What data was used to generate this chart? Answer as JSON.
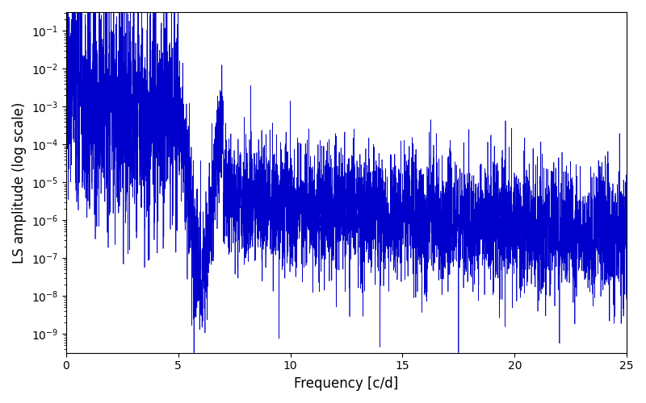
{
  "xlabel": "Frequency [c/d]",
  "ylabel": "LS amplitude (log scale)",
  "xlim": [
    0,
    25
  ],
  "ylim_log_min": -9.5,
  "ylim_log_max": -0.5,
  "line_color": "#0000cc",
  "line_width": 0.5,
  "bg_color": "#ffffff",
  "figsize": [
    8.0,
    5.0
  ],
  "dpi": 100,
  "xticks": [
    0,
    5,
    10,
    15,
    20,
    25
  ],
  "seed": 77,
  "n_points": 6000,
  "freq_max": 25.0
}
